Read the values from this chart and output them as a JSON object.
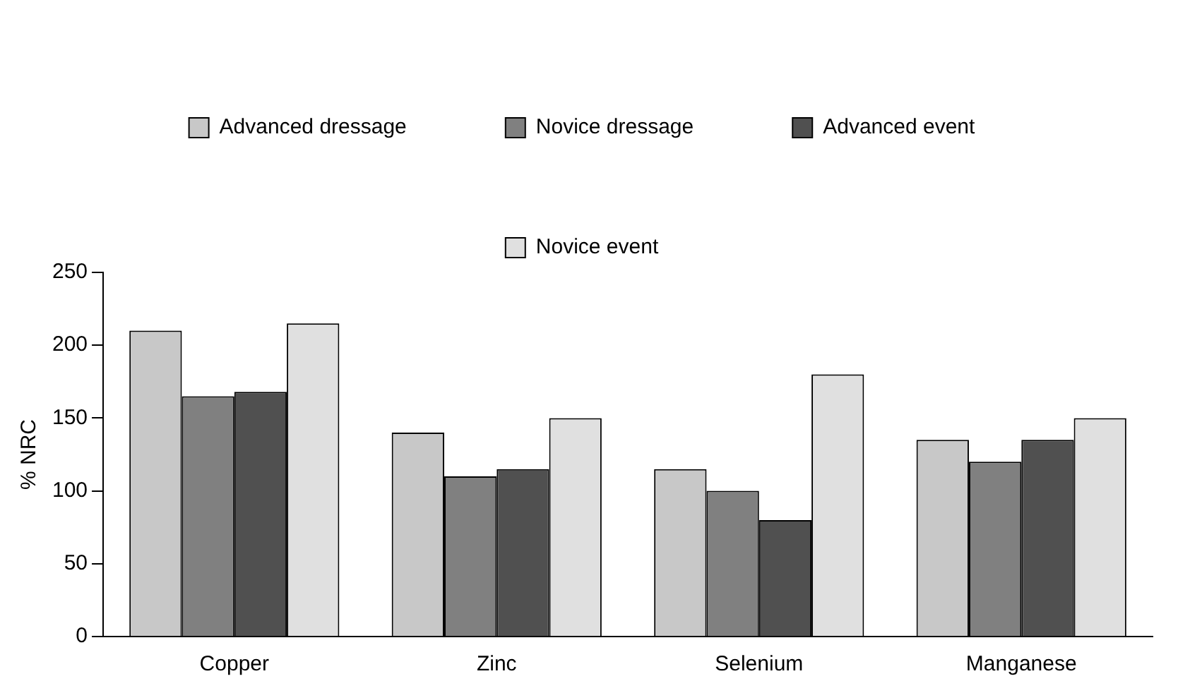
{
  "chart_data": {
    "type": "bar",
    "ylabel": "% NRC",
    "categories": [
      "Copper",
      "Zinc",
      "Selenium",
      "Manganese"
    ],
    "series": [
      {
        "name": "Advanced dressage",
        "color": "#c8c8c8",
        "values": [
          210,
          140,
          115,
          135
        ]
      },
      {
        "name": "Novice dressage",
        "color": "#808080",
        "values": [
          165,
          110,
          100,
          120
        ]
      },
      {
        "name": "Advanced event",
        "color": "#505050",
        "values": [
          168,
          115,
          80,
          135
        ]
      },
      {
        "name": "Novice event",
        "color": "#e0e0e0",
        "values": [
          215,
          150,
          180,
          150
        ]
      }
    ],
    "ylim": [
      0,
      250
    ],
    "yticks": [
      0,
      50,
      100,
      150,
      200,
      250
    ],
    "grid": false,
    "legend": "top"
  }
}
